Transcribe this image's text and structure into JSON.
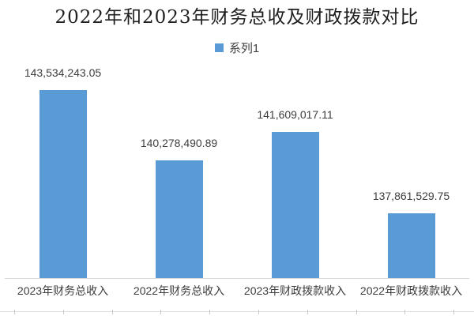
{
  "title": "2022年和2023年财务总收及财政拨款对比",
  "legend": {
    "series_label": "系列1",
    "swatch_color": "#5B9BD5"
  },
  "chart_data": {
    "type": "bar",
    "title": "2022年和2023年财务总收及财政拨款对比",
    "categories": [
      "2023年财务总收入",
      "2022年财务总收入",
      "2023年财政拨款收入",
      "2022年财政拨款收入"
    ],
    "series": [
      {
        "name": "系列1",
        "values": [
          143534243.05,
          140278490.89,
          141609017.11,
          137861529.75
        ]
      }
    ],
    "data_labels": [
      "143,534,243.05",
      "140,278,490.89",
      "141,609,017.11",
      "137,861,529.75"
    ],
    "ylim": [
      134880000,
      143600000
    ],
    "bar_color": "#5B9BD5",
    "grid": false,
    "legend_position": "top",
    "y_axis_visible": false,
    "data_labels_visible": true
  },
  "colors": {
    "bar": "#5B9BD5",
    "title_text": "#1f1f1f",
    "label_text": "#3d3d3d",
    "axis_line": "#d9d9d9"
  }
}
